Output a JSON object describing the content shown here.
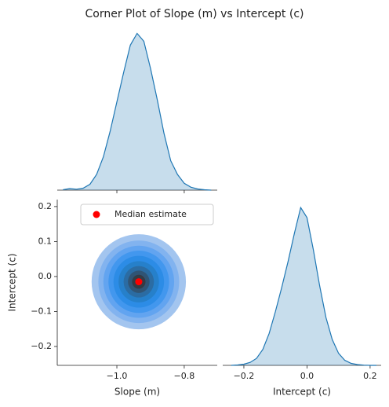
{
  "title": "Corner Plot of Slope (m) vs Intercept (c)",
  "chart_data": [
    {
      "type": "kde",
      "color": "#1f77b4",
      "x": [
        -1.16,
        -1.14,
        -1.12,
        -1.1,
        -1.08,
        -1.06,
        -1.04,
        -1.02,
        -1.0,
        -0.98,
        -0.96,
        -0.94,
        -0.92,
        -0.9,
        -0.88,
        -0.86,
        -0.84,
        -0.82,
        -0.8,
        -0.78,
        -0.76,
        -0.74,
        -0.72
      ],
      "values": [
        0.02,
        0.08,
        0.05,
        0.1,
        0.3,
        0.8,
        1.7,
        3.0,
        4.5,
        6.0,
        7.4,
        8.0,
        7.6,
        6.2,
        4.6,
        2.9,
        1.5,
        0.8,
        0.35,
        0.15,
        0.06,
        0.02,
        0.0
      ],
      "xlim": [
        -1.177,
        -0.702
      ],
      "ylim": [
        0,
        8.3
      ],
      "xticks": [
        -1.0,
        -0.8
      ]
    },
    {
      "type": "contour",
      "x_label": "Slope (m)",
      "y_label": "Intercept (c)",
      "xlim": [
        -1.177,
        -0.702
      ],
      "ylim": [
        -0.254,
        0.22
      ],
      "xticks": [
        {
          "value": -1.0,
          "label": "−1.0"
        },
        {
          "value": -0.8,
          "label": "−0.8"
        }
      ],
      "yticks": [
        {
          "value": -0.2,
          "label": "−0.2"
        },
        {
          "value": -0.1,
          "label": "−0.1"
        },
        {
          "value": 0,
          "label": "0.0"
        },
        0.1,
        0.2
      ],
      "center": [
        -0.935,
        -0.015
      ],
      "contours": [
        {
          "rx": 0.14,
          "ry": 0.136,
          "color": "#a3c5ef"
        },
        {
          "rx": 0.12,
          "ry": 0.118,
          "color": "#82b3ef"
        },
        {
          "rx": 0.105,
          "ry": 0.103,
          "color": "#62a4f0"
        },
        {
          "rx": 0.09,
          "ry": 0.089,
          "color": "#4297ee"
        },
        {
          "rx": 0.075,
          "ry": 0.074,
          "color": "#2c8ce6"
        },
        {
          "rx": 0.06,
          "ry": 0.059,
          "color": "#2680ca"
        },
        {
          "rx": 0.045,
          "ry": 0.045,
          "color": "#2b6ca3"
        },
        {
          "rx": 0.032,
          "ry": 0.032,
          "color": "#305474"
        },
        {
          "rx": 0.02,
          "ry": 0.02,
          "color": "#343b45"
        }
      ],
      "marker": {
        "name": "Median estimate",
        "x": -0.935,
        "y": -0.015,
        "color": "#ff0000"
      },
      "legend": "upper center"
    },
    {
      "type": "kde",
      "color": "#1f77b4",
      "x_label": "Intercept (c)",
      "x": [
        -0.24,
        -0.22,
        -0.2,
        -0.18,
        -0.16,
        -0.14,
        -0.12,
        -0.1,
        -0.08,
        -0.06,
        -0.04,
        -0.02,
        0.0,
        0.02,
        0.04,
        0.06,
        0.08,
        0.1,
        0.12,
        0.14,
        0.16,
        0.18,
        0.2,
        0.22
      ],
      "values": [
        0.0,
        0.02,
        0.06,
        0.15,
        0.35,
        0.8,
        1.6,
        2.7,
        3.9,
        5.2,
        6.6,
        7.9,
        7.4,
        5.8,
        4.0,
        2.4,
        1.3,
        0.6,
        0.25,
        0.1,
        0.04,
        0.01,
        0.0,
        0.0
      ],
      "xlim": [
        -0.267,
        0.235
      ],
      "ylim": [
        0,
        8.3
      ],
      "xticks": [
        {
          "value": -0.2,
          "label": "−0.2"
        },
        {
          "value": 0,
          "label": "0.0"
        },
        {
          "value": 0.2,
          "label": "0.2"
        }
      ]
    }
  ]
}
